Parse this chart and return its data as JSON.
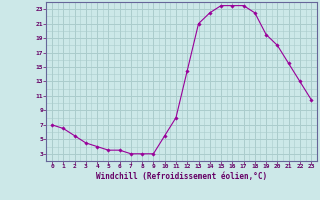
{
  "hours": [
    0,
    1,
    2,
    3,
    4,
    5,
    6,
    7,
    8,
    9,
    10,
    11,
    12,
    13,
    14,
    15,
    16,
    17,
    18,
    19,
    20,
    21,
    22,
    23
  ],
  "values": [
    7.0,
    6.5,
    5.5,
    4.5,
    4.0,
    3.5,
    3.5,
    3.0,
    3.0,
    3.0,
    5.5,
    8.0,
    14.5,
    21.0,
    22.5,
    23.5,
    23.5,
    23.5,
    22.5,
    19.5,
    18.0,
    15.5,
    13.0,
    10.5
  ],
  "line_color": "#990099",
  "marker": "D",
  "marker_size": 1.8,
  "bg_color": "#cce8e8",
  "grid_color": "#aacccc",
  "xlabel": "Windchill (Refroidissement éolien,°C)",
  "ylim": [
    2,
    24
  ],
  "xlim": [
    -0.5,
    23.5
  ],
  "yticks": [
    3,
    5,
    7,
    9,
    11,
    13,
    15,
    17,
    19,
    21,
    23
  ],
  "xticks": [
    0,
    1,
    2,
    3,
    4,
    5,
    6,
    7,
    8,
    9,
    10,
    11,
    12,
    13,
    14,
    15,
    16,
    17,
    18,
    19,
    20,
    21,
    22,
    23
  ],
  "label_color": "#660066",
  "spine_color": "#666699"
}
